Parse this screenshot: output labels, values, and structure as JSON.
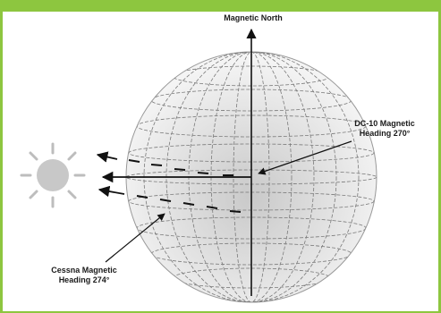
{
  "labels": {
    "north": "Magnetic North",
    "dc10_line1": "DC-10 Magnetic",
    "dc10_line2": "Heading 270°",
    "cessna_line1": "Cessna Magnetic",
    "cessna_line2": "Heading 274°"
  },
  "icons": {
    "sun": "sun-icon",
    "globe": "globe-icon"
  },
  "colors": {
    "frame": "#8dc63f",
    "background": "#ffffff",
    "globe_light": "#f2f2f2",
    "globe_dark": "#cfcfcf",
    "sun": "#cccccc",
    "ink": "#111111"
  }
}
